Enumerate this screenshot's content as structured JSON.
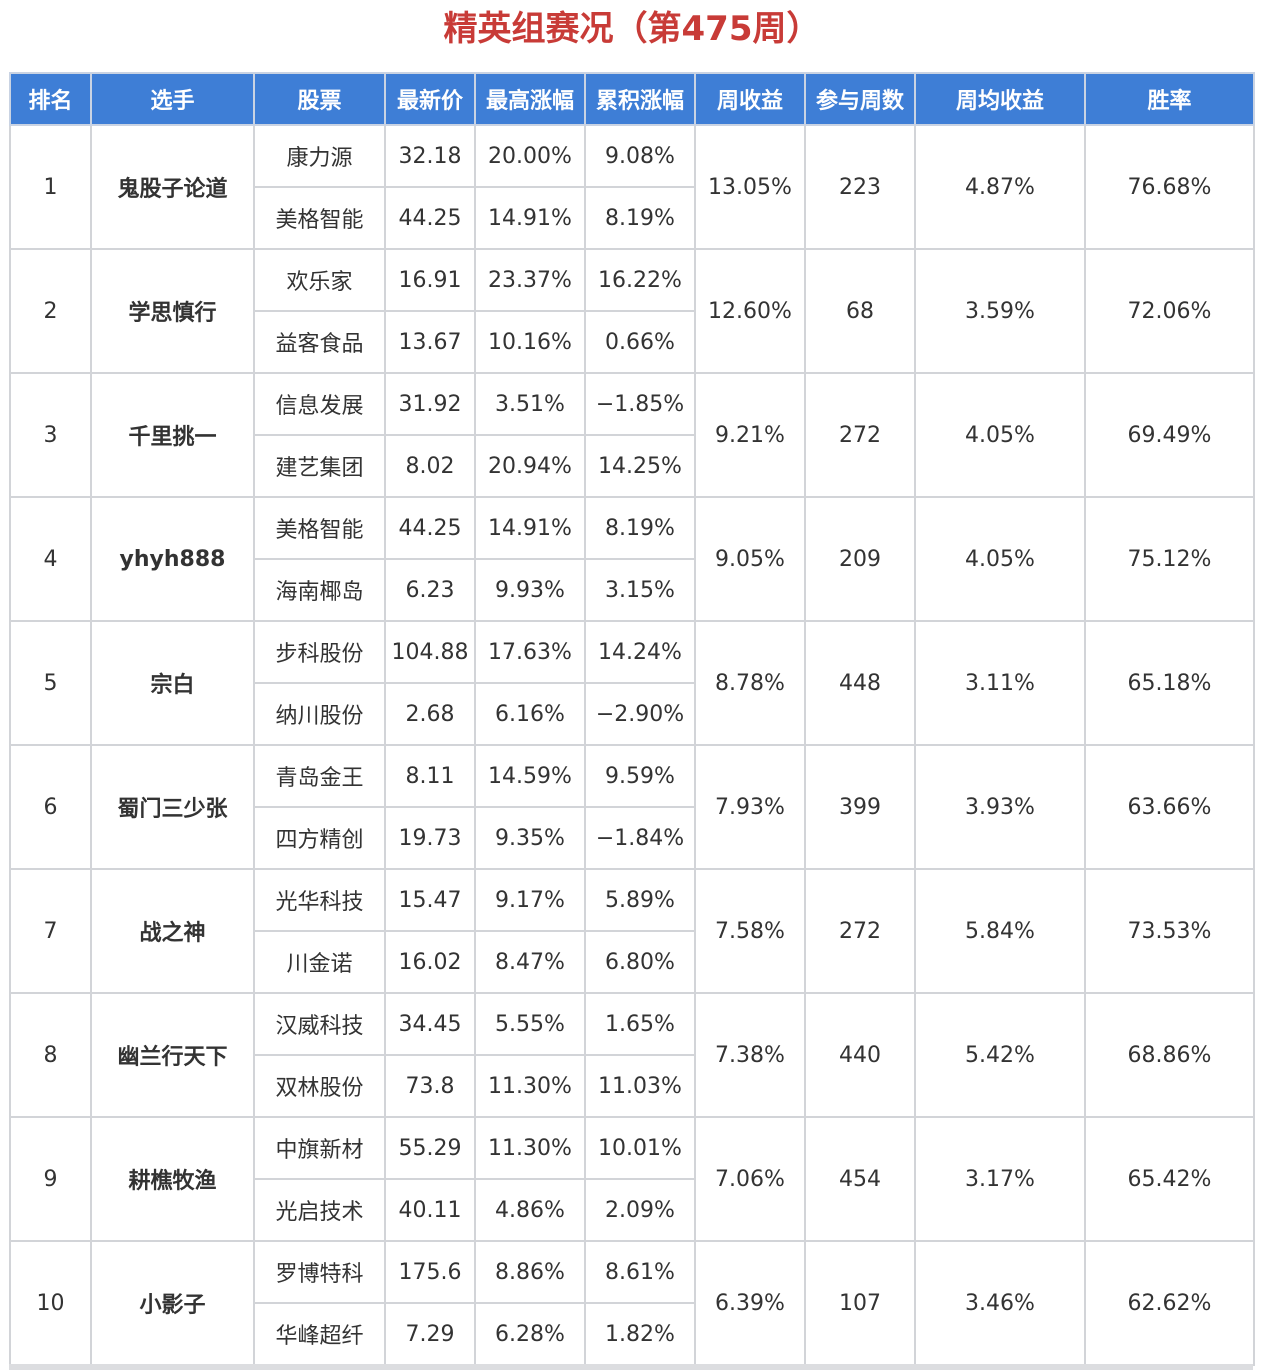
{
  "title": "精英组赛况（第475周）",
  "colors": {
    "title": "#c83b37",
    "header_bg": "#3e7ed6",
    "link_blue": "#2f6bc0",
    "positive_red": "#d23a3a",
    "negative_green": "#3a7d2b"
  },
  "headers": [
    "排名",
    "选手",
    "股票",
    "最新价",
    "最高涨幅",
    "累积涨幅",
    "周收益",
    "参与周数",
    "周均收益",
    "胜率"
  ],
  "rows": [
    {
      "rank": "1",
      "player": "鬼股子论道",
      "weekly_return": "13.05%",
      "weeks": "223",
      "avg_return": "4.87%",
      "win_rate": "76.68%",
      "stocks": [
        {
          "name": "康力源",
          "price": "32.18",
          "max_gain": "20.00%",
          "cum_gain": "9.08%",
          "cum_sign": "pos"
        },
        {
          "name": "美格智能",
          "price": "44.25",
          "max_gain": "14.91%",
          "cum_gain": "8.19%",
          "cum_sign": "pos"
        }
      ]
    },
    {
      "rank": "2",
      "player": "学思慎行",
      "weekly_return": "12.60%",
      "weeks": "68",
      "avg_return": "3.59%",
      "win_rate": "72.06%",
      "stocks": [
        {
          "name": "欢乐家",
          "price": "16.91",
          "max_gain": "23.37%",
          "cum_gain": "16.22%",
          "cum_sign": "pos"
        },
        {
          "name": "益客食品",
          "price": "13.67",
          "max_gain": "10.16%",
          "cum_gain": "0.66%",
          "cum_sign": "pos"
        }
      ]
    },
    {
      "rank": "3",
      "player": "千里挑一",
      "weekly_return": "9.21%",
      "weeks": "272",
      "avg_return": "4.05%",
      "win_rate": "69.49%",
      "stocks": [
        {
          "name": "信息发展",
          "price": "31.92",
          "max_gain": "3.51%",
          "cum_gain": "−1.85%",
          "cum_sign": "neg"
        },
        {
          "name": "建艺集团",
          "price": "8.02",
          "max_gain": "20.94%",
          "cum_gain": "14.25%",
          "cum_sign": "pos"
        }
      ]
    },
    {
      "rank": "4",
      "player": "yhyh888",
      "weekly_return": "9.05%",
      "weeks": "209",
      "avg_return": "4.05%",
      "win_rate": "75.12%",
      "stocks": [
        {
          "name": "美格智能",
          "price": "44.25",
          "max_gain": "14.91%",
          "cum_gain": "8.19%",
          "cum_sign": "pos"
        },
        {
          "name": "海南椰岛",
          "price": "6.23",
          "max_gain": "9.93%",
          "cum_gain": "3.15%",
          "cum_sign": "pos"
        }
      ]
    },
    {
      "rank": "5",
      "player": "宗白",
      "weekly_return": "8.78%",
      "weeks": "448",
      "avg_return": "3.11%",
      "win_rate": "65.18%",
      "stocks": [
        {
          "name": "步科股份",
          "price": "104.88",
          "max_gain": "17.63%",
          "cum_gain": "14.24%",
          "cum_sign": "pos"
        },
        {
          "name": "纳川股份",
          "price": "2.68",
          "max_gain": "6.16%",
          "cum_gain": "−2.90%",
          "cum_sign": "neg"
        }
      ]
    },
    {
      "rank": "6",
      "player": "蜀门三少张",
      "weekly_return": "7.93%",
      "weeks": "399",
      "avg_return": "3.93%",
      "win_rate": "63.66%",
      "stocks": [
        {
          "name": "青岛金王",
          "price": "8.11",
          "max_gain": "14.59%",
          "cum_gain": "9.59%",
          "cum_sign": "pos"
        },
        {
          "name": "四方精创",
          "price": "19.73",
          "max_gain": "9.35%",
          "cum_gain": "−1.84%",
          "cum_sign": "neg"
        }
      ]
    },
    {
      "rank": "7",
      "player": "战之神",
      "weekly_return": "7.58%",
      "weeks": "272",
      "avg_return": "5.84%",
      "win_rate": "73.53%",
      "stocks": [
        {
          "name": "光华科技",
          "price": "15.47",
          "max_gain": "9.17%",
          "cum_gain": "5.89%",
          "cum_sign": "pos"
        },
        {
          "name": "川金诺",
          "price": "16.02",
          "max_gain": "8.47%",
          "cum_gain": "6.80%",
          "cum_sign": "pos"
        }
      ]
    },
    {
      "rank": "8",
      "player": "幽兰行天下",
      "weekly_return": "7.38%",
      "weeks": "440",
      "avg_return": "5.42%",
      "win_rate": "68.86%",
      "stocks": [
        {
          "name": "汉威科技",
          "price": "34.45",
          "max_gain": "5.55%",
          "cum_gain": "1.65%",
          "cum_sign": "pos"
        },
        {
          "name": "双林股份",
          "price": "73.8",
          "max_gain": "11.30%",
          "cum_gain": "11.03%",
          "cum_sign": "pos"
        }
      ]
    },
    {
      "rank": "9",
      "player": "耕樵牧渔",
      "weekly_return": "7.06%",
      "weeks": "454",
      "avg_return": "3.17%",
      "win_rate": "65.42%",
      "stocks": [
        {
          "name": "中旗新材",
          "price": "55.29",
          "max_gain": "11.30%",
          "cum_gain": "10.01%",
          "cum_sign": "pos"
        },
        {
          "name": "光启技术",
          "price": "40.11",
          "max_gain": "4.86%",
          "cum_gain": "2.09%",
          "cum_sign": "pos"
        }
      ]
    },
    {
      "rank": "10",
      "player": "小影子",
      "weekly_return": "6.39%",
      "weeks": "107",
      "avg_return": "3.46%",
      "win_rate": "62.62%",
      "stocks": [
        {
          "name": "罗博特科",
          "price": "175.6",
          "max_gain": "8.86%",
          "cum_gain": "8.61%",
          "cum_sign": "pos"
        },
        {
          "name": "华峰超纤",
          "price": "7.29",
          "max_gain": "6.28%",
          "cum_gain": "1.82%",
          "cum_sign": "pos"
        }
      ]
    }
  ]
}
